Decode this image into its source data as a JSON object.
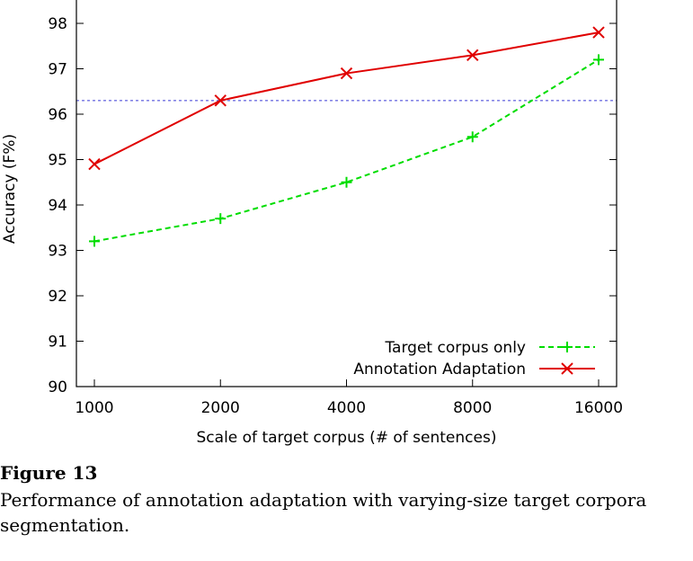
{
  "chart_data": {
    "type": "line",
    "title": "",
    "xlabel": "Scale of target corpus (# of sentences)",
    "ylabel": "Accuracy (F%)",
    "categories": [
      "1000",
      "2000",
      "4000",
      "8000",
      "16000"
    ],
    "ylim": [
      90,
      98.5
    ],
    "yticks": [
      "90",
      "91",
      "92",
      "93",
      "94",
      "95",
      "96",
      "97",
      "98"
    ],
    "legend_position": "bottom-right",
    "reference_line": {
      "y": 96.3,
      "color": "#3b3bd6",
      "style": "dotted"
    },
    "series": [
      {
        "name": "Target corpus only",
        "values": [
          93.2,
          93.7,
          94.5,
          95.5,
          97.2
        ],
        "color": "#00dd00",
        "marker": "plus",
        "dash": "dashed"
      },
      {
        "name": "Annotation Adaptation",
        "values": [
          94.9,
          96.3,
          96.9,
          97.3,
          97.8
        ],
        "color": "#e00000",
        "marker": "cross",
        "dash": "solid"
      }
    ]
  },
  "caption": {
    "title": "Figure 13",
    "text": "Performance of annotation adaptation with varying-size target corpora segmentation."
  }
}
